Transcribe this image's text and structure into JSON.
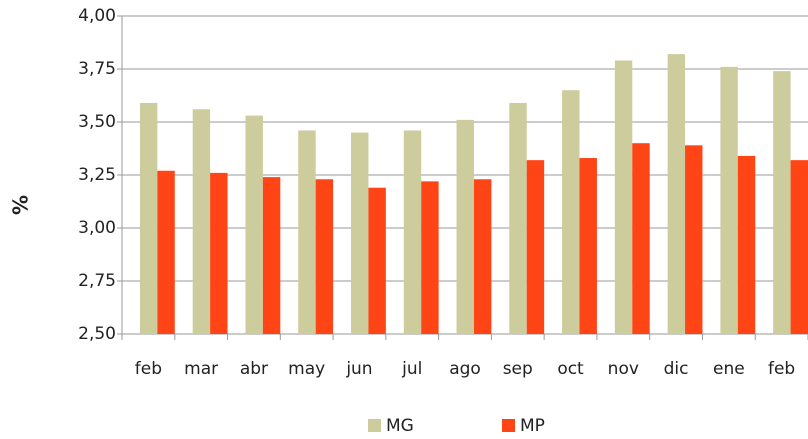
{
  "chart_data": {
    "type": "bar",
    "y_label": "%",
    "categories": [
      "feb",
      "mar",
      "abr",
      "may",
      "jun",
      "jul",
      "ago",
      "sep",
      "oct",
      "nov",
      "dic",
      "ene",
      "feb"
    ],
    "series": [
      {
        "name": "MG",
        "color": "#cccc9c",
        "values": [
          3.59,
          3.56,
          3.53,
          3.46,
          3.45,
          3.46,
          3.51,
          3.59,
          3.65,
          3.79,
          3.82,
          3.76,
          3.74
        ]
      },
      {
        "name": "MP",
        "color": "#ff4515",
        "values": [
          3.27,
          3.26,
          3.24,
          3.23,
          3.19,
          3.22,
          3.23,
          3.32,
          3.33,
          3.4,
          3.39,
          3.34,
          3.32
        ]
      }
    ],
    "ylim": [
      2.5,
      4.0
    ],
    "yticks": [
      {
        "value": 2.5,
        "label": "2,50"
      },
      {
        "value": 2.75,
        "label": "2,75"
      },
      {
        "value": 3.0,
        "label": "3,00"
      },
      {
        "value": 3.25,
        "label": "3,25"
      },
      {
        "value": 3.5,
        "label": "3,50"
      },
      {
        "value": 3.75,
        "label": "3,75"
      },
      {
        "value": 4.0,
        "label": "4,00"
      }
    ],
    "grid": true,
    "legend": "bottom"
  }
}
